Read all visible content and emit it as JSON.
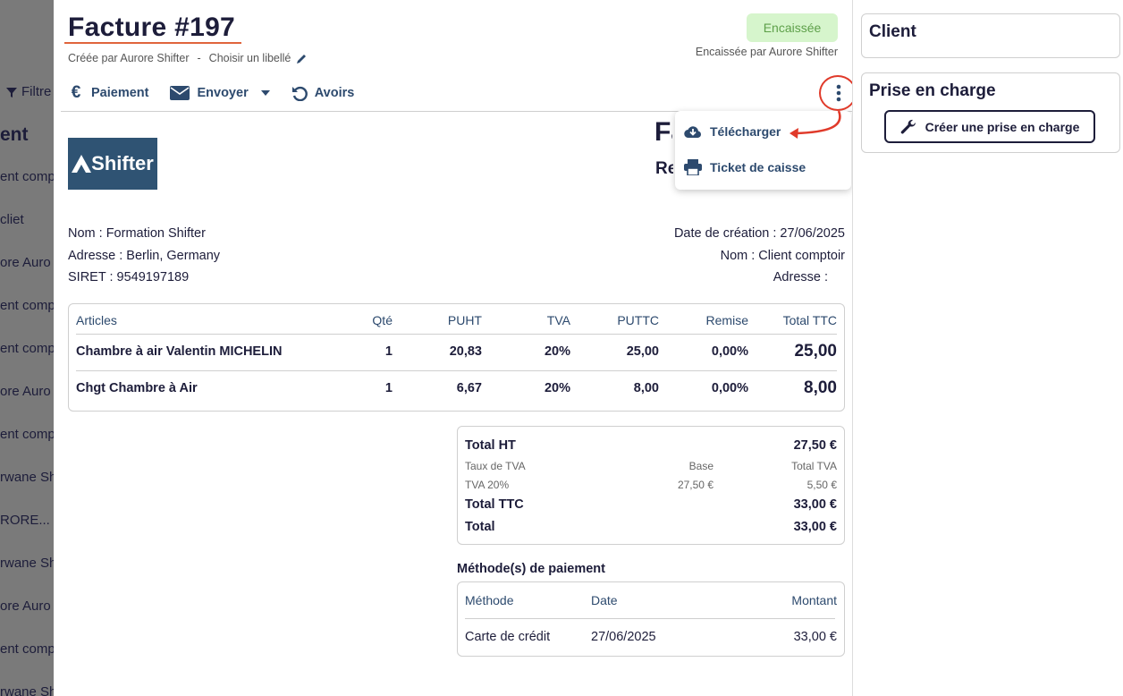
{
  "background_list": {
    "filter_label": "Filtre",
    "column_header": "ent",
    "rows": [
      "ent comp",
      "cliet",
      "ore Auro",
      "ent comp",
      "ent comp",
      "ore Auro",
      "ent comp",
      "rwane Sh",
      "RORE...",
      "rwane Sh",
      "ore Auro",
      "ent comp",
      "rwane Sh"
    ]
  },
  "invoice": {
    "title": "Facture #197",
    "created_by": "Créée par Aurore Shifter",
    "separator": "-",
    "label_link": "Choisir un libellé",
    "status_badge": "Encaissée",
    "collected_by": "Encaissée par Aurore Shifter",
    "status_color": "#5ea04a"
  },
  "toolbar": {
    "payment": "Paiement",
    "send": "Envoyer",
    "credits": "Avoirs"
  },
  "menu": {
    "download": "Télécharger",
    "receipt": "Ticket de caisse"
  },
  "document": {
    "logo_text": "Shifter",
    "type_partial": "Fa",
    "subtype_partial": "Re",
    "seller": {
      "name": "Nom : Formation Shifter",
      "address": "Adresse : Berlin, Germany",
      "siret": "SIRET : 9549197189"
    },
    "client": {
      "date": "Date de création : 27/06/2025",
      "name": "Nom : Client comptoir",
      "address": "Adresse :"
    },
    "columns": [
      "Articles",
      "Qté",
      "PUHT",
      "TVA",
      "PUTTC",
      "Remise",
      "Total TTC"
    ],
    "rows": [
      {
        "article": "Chambre à air Valentin MICHELIN",
        "qty": "1",
        "puht": "20,83",
        "tva": "20%",
        "puttc": "25,00",
        "discount": "0,00%",
        "total": "25,00"
      },
      {
        "article": "Chgt Chambre à Air",
        "qty": "1",
        "puht": "6,67",
        "tva": "20%",
        "puttc": "8,00",
        "discount": "0,00%",
        "total": "8,00"
      }
    ],
    "totals": {
      "total_ht_label": "Total HT",
      "total_ht": "27,50 €",
      "vat_rate_label": "Taux de TVA",
      "base_label": "Base",
      "vat_total_label": "Total TVA",
      "vat_rate": "TVA 20%",
      "vat_base": "27,50 €",
      "vat_amount": "5,50 €",
      "total_ttc_label": "Total TTC",
      "total_ttc": "33,00 €",
      "total_label": "Total",
      "total": "33,00 €"
    },
    "payments": {
      "title": "Méthode(s) de paiement",
      "columns": [
        "Méthode",
        "Date",
        "Montant"
      ],
      "rows": [
        {
          "method": "Carte de crédit",
          "date": "27/06/2025",
          "amount": "33,00 €"
        }
      ]
    }
  },
  "sidebar": {
    "client_title": "Client",
    "support_title": "Prise en charge",
    "create_support": "Créer une prise en charge"
  }
}
